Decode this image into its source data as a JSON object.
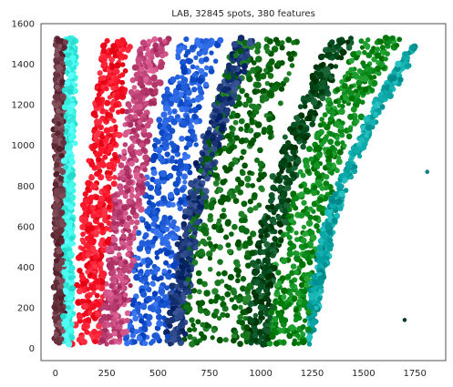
{
  "chart_data": {
    "type": "scatter",
    "title": "LAB, 32845 spots, 380 features",
    "xlabel": "",
    "ylabel": "",
    "xlim": [
      -70,
      1900
    ],
    "ylim": [
      -60,
      1600
    ],
    "grid": false,
    "legend": "none",
    "x_ticks": [
      0,
      250,
      500,
      750,
      1000,
      1250,
      1500,
      1750
    ],
    "y_ticks": [
      0,
      200,
      400,
      600,
      800,
      1000,
      1200,
      1400,
      1600
    ],
    "point_domain": {
      "x_min": 0,
      "x_max": 1760,
      "y_min": 20,
      "y_max": 1530
    },
    "bands": [
      {
        "name": "brown-muted",
        "color": "#6e3a45",
        "x_start": 0,
        "width": 40
      },
      {
        "name": "cyan-yellow",
        "color": "#3ff5e6",
        "x_start": 40,
        "width": 40
      },
      {
        "name": "red",
        "color": "#ff1a2e",
        "x_start": 80,
        "width": 130
      },
      {
        "name": "magenta-mix",
        "color": "#c2457a",
        "x_start": 210,
        "width": 130
      },
      {
        "name": "blue",
        "color": "#1f5bd6",
        "x_start": 340,
        "width": 200
      },
      {
        "name": "navy-mix",
        "color": "#1e3a7a",
        "x_start": 540,
        "width": 80
      },
      {
        "name": "dark-green",
        "color": "#0a6a12",
        "x_start": 620,
        "width": 320
      },
      {
        "name": "deep-green",
        "color": "#004a1c",
        "x_start": 940,
        "width": 110
      },
      {
        "name": "green",
        "color": "#0a8a1a",
        "x_start": 1050,
        "width": 180
      },
      {
        "name": "teal",
        "color": "#0aa5a5",
        "x_start": 1230,
        "width": 50
      }
    ],
    "outliers": [
      {
        "x": 1810,
        "y": 870,
        "color": "#0a7f7f"
      },
      {
        "x": 1700,
        "y": 140,
        "color": "#003b2a"
      }
    ]
  }
}
